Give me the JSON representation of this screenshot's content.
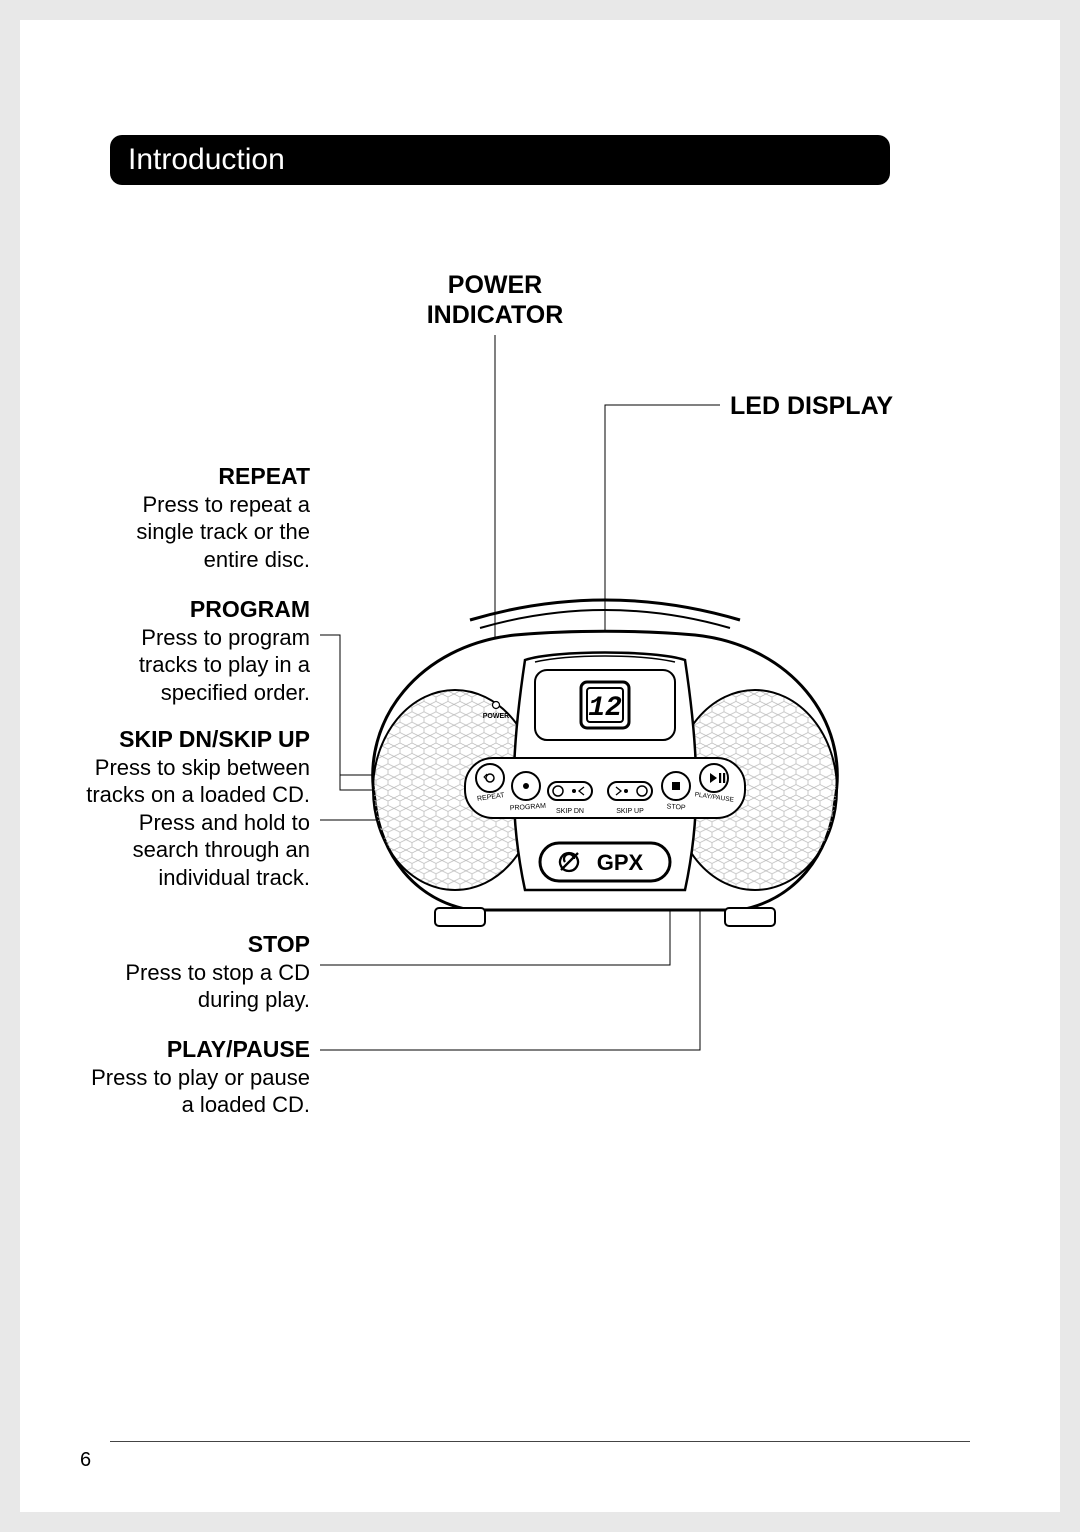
{
  "section_title": "Introduction",
  "page_number": "6",
  "labels": {
    "power_indicator": "POWER\nINDICATOR",
    "led_display": "LED DISPLAY"
  },
  "callouts": {
    "repeat": {
      "title": "REPEAT",
      "body": "Press to repeat a single track or the entire disc."
    },
    "program": {
      "title": "PROGRAM",
      "body": "Press to program tracks to play in a specified order."
    },
    "skip": {
      "title": "SKIP DN/SKIP UP",
      "body": "Press to skip between tracks on a loaded CD. Press and hold to search through an individual track."
    },
    "stop": {
      "title": "STOP",
      "body": "Press to stop a CD during play."
    },
    "play": {
      "title": "PLAY/PAUSE",
      "body": "Press to play or pause a loaded CD."
    }
  },
  "device": {
    "brand": "GPX",
    "display_value": "12",
    "power_text": "POWER",
    "buttons": {
      "repeat": "REPEAT",
      "program": "PROGRAM",
      "skip_dn": "SKIP DN",
      "skip_up": "SKIP UP",
      "stop": "STOP",
      "play": "PLAY/PAUSE"
    }
  },
  "style": {
    "page_bg": "#ffffff",
    "outer_bg": "#e8e8e8",
    "header_bg": "#000000",
    "header_fg": "#ffffff",
    "text_color": "#000000",
    "leader_color": "#000000",
    "leader_width": 1,
    "title_fontsize": 23,
    "body_fontsize": 22
  }
}
